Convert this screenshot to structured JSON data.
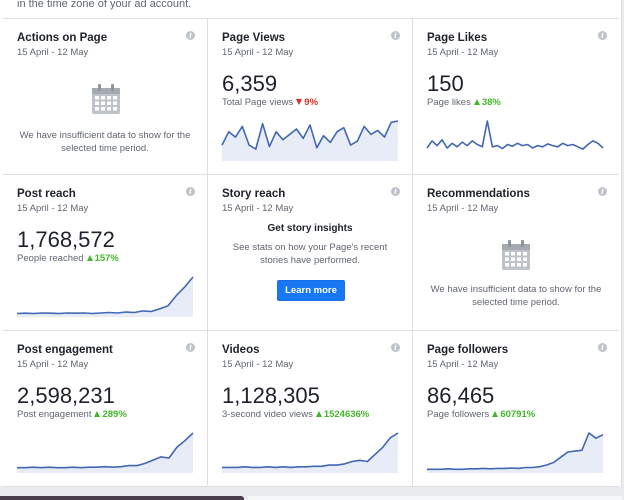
{
  "top_note": "in the time zone of your ad account.",
  "colors": {
    "line": "#4267b2",
    "fill": "#e7ecf7",
    "up": "#42b72a",
    "down": "#e02a2a",
    "button": "#1877f2"
  },
  "cards": [
    {
      "title": "Actions on Page",
      "date": "15 April - 12 May",
      "empty": "We have insufficient data to show for the selected time period."
    },
    {
      "title": "Page Views",
      "date": "15 April - 12 May",
      "value": "6,359",
      "sub": "Total Page views",
      "change": "9%",
      "direction": "down",
      "series": [
        30,
        40,
        36,
        44,
        30,
        27,
        46,
        29,
        40,
        34,
        38,
        42,
        35,
        45,
        28,
        37,
        32,
        40,
        43,
        30,
        33,
        44,
        38,
        41,
        36,
        47,
        48
      ]
    },
    {
      "title": "Page Likes",
      "date": "15 April - 12 May",
      "value": "150",
      "sub": "Page likes",
      "change": "38%",
      "direction": "up",
      "series": [
        18,
        30,
        22,
        32,
        18,
        26,
        20,
        28,
        22,
        30,
        24,
        20,
        64,
        20,
        22,
        17,
        24,
        21,
        26,
        22,
        24,
        18,
        22,
        20,
        25,
        22,
        20,
        26,
        22,
        24,
        20,
        16,
        24,
        30,
        26,
        18
      ]
    },
    {
      "title": "Post reach",
      "date": "15 April - 12 May",
      "value": "1,768,572",
      "sub": "People reached",
      "change": "157%",
      "direction": "up",
      "series": [
        3,
        3.5,
        3,
        4,
        3.5,
        3,
        4,
        3.5,
        4,
        3,
        4,
        5,
        4,
        6,
        5,
        8,
        7,
        12,
        18,
        38,
        55,
        75
      ]
    },
    {
      "title": "Story reach",
      "date": "15 April - 12 May",
      "story_head": "Get story insights",
      "story_body": "See stats on how your Page's recent stories have performed.",
      "button": "Learn more"
    },
    {
      "title": "Recommendations",
      "date": "15 April - 12 May",
      "empty": "We have insufficient data to show for the selected time period."
    },
    {
      "title": "Post engagement",
      "date": "15 April - 12 May",
      "value": "2,598,231",
      "sub": "Post engagement",
      "change": "289%",
      "direction": "up",
      "series": [
        3,
        3,
        3.5,
        3,
        3.5,
        3,
        3,
        3.5,
        3,
        3.5,
        3.5,
        4,
        3.5,
        4,
        5,
        5,
        7,
        10,
        13,
        12,
        22,
        28,
        35
      ]
    },
    {
      "title": "Videos",
      "date": "15 April - 12 May",
      "value": "1,128,305",
      "sub": "3-second video views",
      "change": "1524636%",
      "direction": "up",
      "series": [
        3,
        3,
        3,
        3.5,
        3,
        3,
        3.5,
        3,
        3.5,
        3,
        3.5,
        3.5,
        4,
        4,
        5,
        5,
        6,
        8,
        9,
        8,
        14,
        20,
        28,
        32
      ]
    },
    {
      "title": "Page followers",
      "date": "15 April - 12 May",
      "value": "86,465",
      "sub": "Page followers",
      "change": "60791%",
      "direction": "up",
      "series": [
        2,
        2,
        2,
        2.5,
        2,
        2,
        2.5,
        2.5,
        3,
        2.5,
        3,
        3,
        3.5,
        3,
        4,
        4,
        5,
        7,
        10,
        16,
        22,
        23,
        24,
        44,
        38,
        42
      ]
    }
  ]
}
